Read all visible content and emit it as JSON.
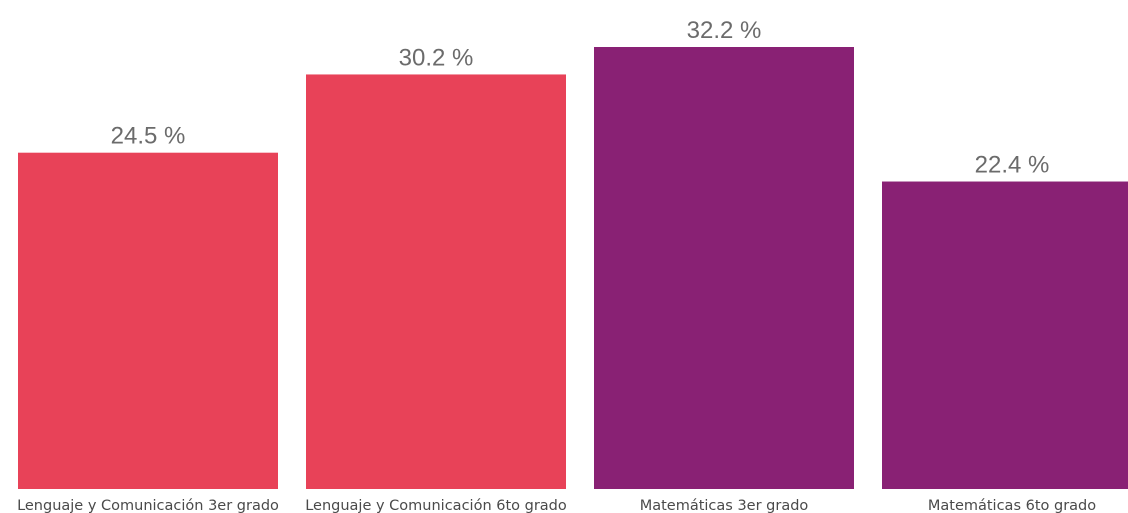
{
  "chart_data": {
    "type": "bar",
    "categories": [
      "Lenguaje y Comunicación 3er grado",
      "Lenguaje y Comunicación 6to grado",
      "Matemáticas 3er grado",
      "Matemáticas 6to grado"
    ],
    "values": [
      24.5,
      30.2,
      32.2,
      22.4
    ],
    "value_labels": [
      "24.5 %",
      "30.2 %",
      "32.2 %",
      "22.4 %"
    ],
    "bar_colors": [
      "#e84258",
      "#e84258",
      "#892174",
      "#892174"
    ],
    "title": "",
    "xlabel": "",
    "ylabel": "",
    "ylim": [
      0,
      32.2
    ],
    "grid": false,
    "legend": "none"
  }
}
